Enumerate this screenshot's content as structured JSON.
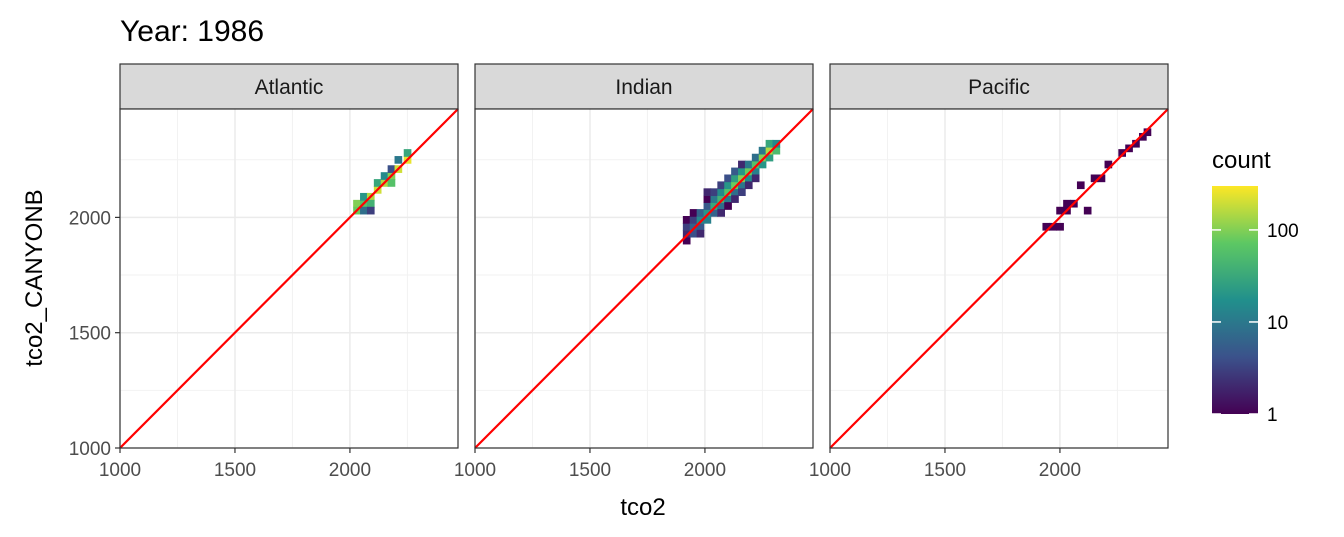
{
  "chart_data": {
    "type": "heatmap",
    "title": "Year: 1986",
    "xlabel": "tco2",
    "ylabel": "tco2_CANYONB",
    "xlim": [
      1000,
      2470
    ],
    "ylim": [
      1000,
      2470
    ],
    "x_ticks": [
      1000,
      1500,
      2000
    ],
    "y_ticks": [
      1000,
      1500,
      2000
    ],
    "grid": true,
    "bin_size": 32,
    "reference_line": {
      "slope": 1,
      "intercept": 0,
      "color": "#ff0000"
    },
    "legend": {
      "title": "count",
      "position": "right",
      "scale": "log10",
      "range": [
        1,
        300
      ],
      "ticks": [
        1,
        10,
        100
      ],
      "tick_labels": [
        "1",
        "10",
        "100"
      ],
      "colors": [
        "#440154",
        "#3b528b",
        "#21908c",
        "#5dc863",
        "#fde725"
      ]
    },
    "panels": [
      {
        "name": "Atlantic",
        "cells": [
          [
            2030,
            2060,
            100
          ],
          [
            2030,
            2030,
            80
          ],
          [
            2060,
            2060,
            60
          ],
          [
            2060,
            2090,
            20
          ],
          [
            2060,
            2030,
            8
          ],
          [
            2090,
            2090,
            150
          ],
          [
            2090,
            2060,
            40
          ],
          [
            2090,
            2030,
            3
          ],
          [
            2120,
            2120,
            200
          ],
          [
            2120,
            2150,
            30
          ],
          [
            2150,
            2150,
            150
          ],
          [
            2150,
            2180,
            15
          ],
          [
            2180,
            2180,
            100
          ],
          [
            2180,
            2150,
            60
          ],
          [
            2180,
            2210,
            4
          ],
          [
            2210,
            2210,
            200
          ],
          [
            2210,
            2250,
            10
          ],
          [
            2250,
            2250,
            250
          ],
          [
            2250,
            2280,
            30
          ]
        ]
      },
      {
        "name": "Indian",
        "cells": [
          [
            1920,
            1900,
            1
          ],
          [
            1920,
            1930,
            2
          ],
          [
            1920,
            1960,
            3
          ],
          [
            1920,
            1990,
            1
          ],
          [
            1950,
            1930,
            4
          ],
          [
            1950,
            1960,
            6
          ],
          [
            1950,
            1990,
            3
          ],
          [
            1950,
            2020,
            1
          ],
          [
            1980,
            1960,
            5
          ],
          [
            1980,
            1990,
            15
          ],
          [
            1980,
            2020,
            6
          ],
          [
            1980,
            1930,
            2
          ],
          [
            2010,
            1990,
            12
          ],
          [
            2010,
            2020,
            20
          ],
          [
            2010,
            2050,
            5
          ],
          [
            2010,
            2080,
            1
          ],
          [
            2010,
            2110,
            2
          ],
          [
            2040,
            2020,
            6
          ],
          [
            2040,
            2050,
            30
          ],
          [
            2040,
            2080,
            10
          ],
          [
            2040,
            2110,
            3
          ],
          [
            2070,
            2050,
            8
          ],
          [
            2070,
            2080,
            40
          ],
          [
            2070,
            2110,
            15
          ],
          [
            2070,
            2140,
            3
          ],
          [
            2070,
            2020,
            2
          ],
          [
            2100,
            2080,
            10
          ],
          [
            2100,
            2110,
            60
          ],
          [
            2100,
            2140,
            20
          ],
          [
            2100,
            2170,
            4
          ],
          [
            2100,
            2050,
            1
          ],
          [
            2130,
            2110,
            8
          ],
          [
            2130,
            2140,
            80
          ],
          [
            2130,
            2170,
            25
          ],
          [
            2130,
            2200,
            5
          ],
          [
            2130,
            2080,
            2
          ],
          [
            2160,
            2140,
            10
          ],
          [
            2160,
            2170,
            100
          ],
          [
            2160,
            2200,
            20
          ],
          [
            2160,
            2110,
            3
          ],
          [
            2160,
            2230,
            2
          ],
          [
            2190,
            2170,
            15
          ],
          [
            2190,
            2200,
            80
          ],
          [
            2190,
            2230,
            10
          ],
          [
            2190,
            2140,
            2
          ],
          [
            2220,
            2200,
            12
          ],
          [
            2220,
            2230,
            60
          ],
          [
            2220,
            2260,
            8
          ],
          [
            2220,
            2170,
            2
          ],
          [
            2250,
            2230,
            20
          ],
          [
            2250,
            2260,
            100
          ],
          [
            2250,
            2290,
            10
          ],
          [
            2280,
            2260,
            25
          ],
          [
            2280,
            2290,
            150
          ],
          [
            2280,
            2320,
            30
          ],
          [
            2310,
            2290,
            50
          ],
          [
            2310,
            2320,
            15
          ]
        ]
      },
      {
        "name": "Pacific",
        "cells": [
          [
            1940,
            1960,
            1
          ],
          [
            1970,
            1960,
            1
          ],
          [
            2000,
            1960,
            1
          ],
          [
            2000,
            2030,
            1
          ],
          [
            2030,
            2060,
            1
          ],
          [
            2030,
            2030,
            1
          ],
          [
            2060,
            2060,
            1
          ],
          [
            2090,
            2140,
            1
          ],
          [
            2120,
            2030,
            1
          ],
          [
            2150,
            2170,
            1
          ],
          [
            2180,
            2170,
            1
          ],
          [
            2210,
            2230,
            1
          ],
          [
            2270,
            2280,
            1
          ],
          [
            2300,
            2300,
            1
          ],
          [
            2330,
            2320,
            1
          ],
          [
            2360,
            2350,
            1
          ],
          [
            2380,
            2370,
            1
          ]
        ]
      }
    ]
  }
}
